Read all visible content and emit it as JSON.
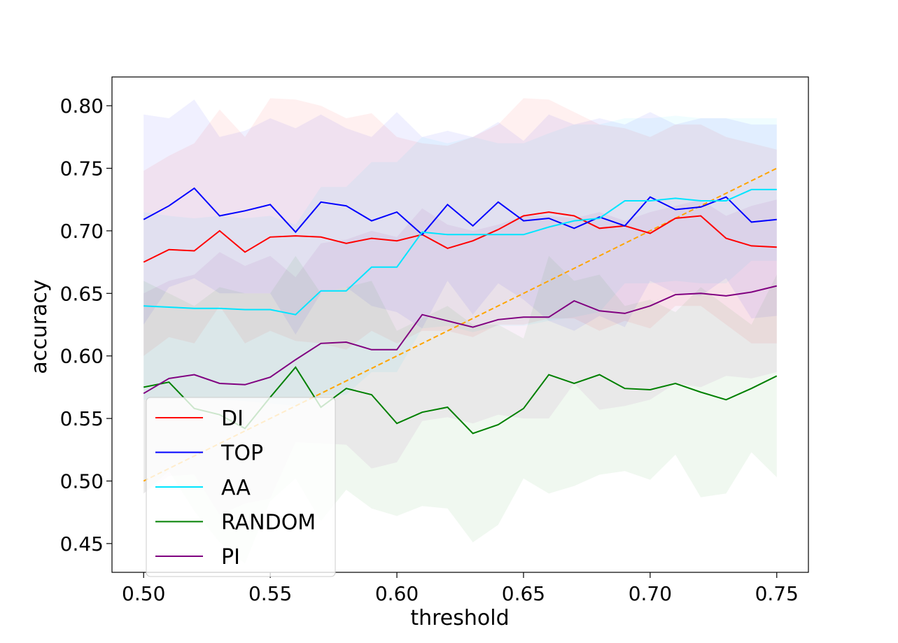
{
  "chart_data": {
    "type": "line",
    "title": "",
    "xlabel": "threshold",
    "ylabel": "accuracy",
    "xlim": [
      0.4875,
      0.7625
    ],
    "ylim": [
      0.427,
      0.823
    ],
    "x_ticks": [
      "0.50",
      "0.55",
      "0.60",
      "0.65",
      "0.70",
      "0.75"
    ],
    "x_tick_values": [
      0.5,
      0.55,
      0.6,
      0.65,
      0.7,
      0.75
    ],
    "y_ticks": [
      "0.45",
      "0.50",
      "0.55",
      "0.60",
      "0.65",
      "0.70",
      "0.75",
      "0.80"
    ],
    "y_tick_values": [
      0.45,
      0.5,
      0.55,
      0.6,
      0.65,
      0.7,
      0.75,
      0.8
    ],
    "grid": false,
    "legend_position": "bottom-left",
    "x": [
      0.5,
      0.51,
      0.52,
      0.53,
      0.54,
      0.55,
      0.56,
      0.57,
      0.58,
      0.59,
      0.6,
      0.61,
      0.62,
      0.63,
      0.64,
      0.65,
      0.66,
      0.67,
      0.68,
      0.69,
      0.7,
      0.71,
      0.72,
      0.73,
      0.74,
      0.75
    ],
    "series": [
      {
        "name": "DI",
        "color": "#ff0000",
        "values": [
          0.675,
          0.685,
          0.684,
          0.7,
          0.683,
          0.695,
          0.696,
          0.695,
          0.69,
          0.694,
          0.692,
          0.697,
          0.686,
          0.692,
          0.701,
          0.712,
          0.715,
          0.712,
          0.702,
          0.704,
          0.698,
          0.71,
          0.712,
          0.694,
          0.688,
          0.687
        ],
        "upper": [
          0.748,
          0.76,
          0.77,
          0.797,
          0.775,
          0.806,
          0.805,
          0.8,
          0.79,
          0.794,
          0.775,
          0.77,
          0.768,
          0.775,
          0.785,
          0.806,
          0.805,
          0.795,
          0.785,
          0.782,
          0.775,
          0.785,
          0.785,
          0.775,
          0.77,
          0.765
        ],
        "lower": [
          0.6,
          0.615,
          0.61,
          0.64,
          0.61,
          0.62,
          0.612,
          0.61,
          0.605,
          0.62,
          0.61,
          0.62,
          0.62,
          0.615,
          0.625,
          0.625,
          0.63,
          0.63,
          0.62,
          0.628,
          0.622,
          0.64,
          0.64,
          0.625,
          0.61,
          0.61
        ]
      },
      {
        "name": "TOP",
        "color": "#0000ff",
        "values": [
          0.709,
          0.72,
          0.734,
          0.712,
          0.716,
          0.721,
          0.699,
          0.723,
          0.72,
          0.708,
          0.715,
          0.697,
          0.721,
          0.704,
          0.723,
          0.708,
          0.71,
          0.702,
          0.711,
          0.704,
          0.727,
          0.717,
          0.719,
          0.727,
          0.707,
          0.709
        ],
        "upper": [
          0.793,
          0.79,
          0.805,
          0.775,
          0.78,
          0.79,
          0.782,
          0.793,
          0.782,
          0.775,
          0.795,
          0.775,
          0.78,
          0.775,
          0.787,
          0.772,
          0.793,
          0.785,
          0.79,
          0.785,
          0.795,
          0.785,
          0.79,
          0.79,
          0.785,
          0.785
        ],
        "lower": [
          0.625,
          0.655,
          0.662,
          0.65,
          0.65,
          0.65,
          0.617,
          0.65,
          0.655,
          0.64,
          0.635,
          0.622,
          0.66,
          0.633,
          0.658,
          0.645,
          0.628,
          0.62,
          0.632,
          0.623,
          0.66,
          0.65,
          0.648,
          0.662,
          0.63,
          0.632
        ]
      },
      {
        "name": "AA",
        "color": "#00e5ff",
        "values": [
          0.64,
          0.639,
          0.638,
          0.638,
          0.637,
          0.637,
          0.633,
          0.652,
          0.652,
          0.671,
          0.671,
          0.699,
          0.697,
          0.697,
          0.697,
          0.697,
          0.703,
          0.708,
          0.71,
          0.724,
          0.724,
          0.726,
          0.724,
          0.724,
          0.733,
          0.733
        ],
        "upper": [
          0.715,
          0.712,
          0.71,
          0.712,
          0.71,
          0.712,
          0.705,
          0.735,
          0.735,
          0.755,
          0.755,
          0.775,
          0.77,
          0.775,
          0.77,
          0.77,
          0.778,
          0.785,
          0.785,
          0.79,
          0.79,
          0.792,
          0.79,
          0.79,
          0.79,
          0.79
        ],
        "lower": [
          0.565,
          0.566,
          0.566,
          0.565,
          0.564,
          0.562,
          0.56,
          0.568,
          0.569,
          0.587,
          0.587,
          0.622,
          0.624,
          0.619,
          0.624,
          0.624,
          0.628,
          0.631,
          0.635,
          0.658,
          0.658,
          0.66,
          0.658,
          0.658,
          0.676,
          0.676
        ]
      },
      {
        "name": "RANDOM",
        "color": "#008000",
        "values": [
          0.575,
          0.579,
          0.558,
          0.553,
          0.542,
          0.567,
          0.591,
          0.559,
          0.574,
          0.569,
          0.546,
          0.555,
          0.559,
          0.538,
          0.545,
          0.558,
          0.585,
          0.578,
          0.585,
          0.574,
          0.573,
          0.578,
          0.571,
          0.565,
          0.574,
          0.584
        ],
        "upper": [
          0.66,
          0.65,
          0.64,
          0.655,
          0.65,
          0.65,
          0.68,
          0.65,
          0.655,
          0.66,
          0.62,
          0.63,
          0.64,
          0.625,
          0.625,
          0.614,
          0.68,
          0.66,
          0.665,
          0.64,
          0.645,
          0.635,
          0.655,
          0.64,
          0.625,
          0.665
        ],
        "lower": [
          0.49,
          0.508,
          0.476,
          0.451,
          0.434,
          0.484,
          0.502,
          0.468,
          0.493,
          0.478,
          0.472,
          0.48,
          0.478,
          0.451,
          0.465,
          0.502,
          0.49,
          0.496,
          0.505,
          0.508,
          0.501,
          0.521,
          0.487,
          0.49,
          0.523,
          0.503
        ]
      },
      {
        "name": "PI",
        "color": "#800080",
        "values": [
          0.57,
          0.582,
          0.585,
          0.578,
          0.577,
          0.583,
          0.597,
          0.61,
          0.611,
          0.605,
          0.605,
          0.633,
          0.628,
          0.623,
          0.629,
          0.631,
          0.631,
          0.644,
          0.636,
          0.634,
          0.64,
          0.649,
          0.65,
          0.648,
          0.651,
          0.656
        ],
        "upper": [
          0.65,
          0.66,
          0.665,
          0.683,
          0.672,
          0.68,
          0.663,
          0.69,
          0.693,
          0.7,
          0.695,
          0.718,
          0.705,
          0.7,
          0.705,
          0.712,
          0.712,
          0.71,
          0.715,
          0.708,
          0.715,
          0.72,
          0.725,
          0.712,
          0.72,
          0.725
        ],
        "lower": [
          0.49,
          0.504,
          0.505,
          0.473,
          0.482,
          0.486,
          0.531,
          0.53,
          0.529,
          0.51,
          0.515,
          0.548,
          0.551,
          0.546,
          0.553,
          0.55,
          0.55,
          0.578,
          0.557,
          0.56,
          0.565,
          0.578,
          0.575,
          0.584,
          0.582,
          0.587
        ]
      }
    ],
    "reference_line": {
      "color": "#ffa500",
      "style": "dashed",
      "x": [
        0.5,
        0.75
      ],
      "y": [
        0.5,
        0.75
      ]
    }
  }
}
